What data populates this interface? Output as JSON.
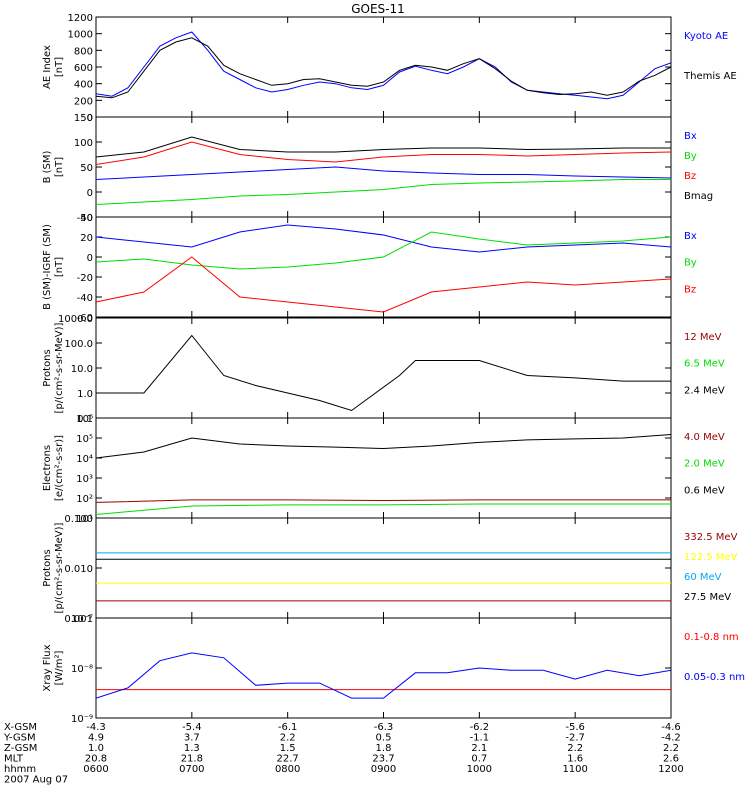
{
  "title": "GOES-11",
  "colors": {
    "black": "#000000",
    "blue": "#0000ff",
    "red": "#ff0000",
    "green": "#00dd00",
    "darkred": "#990000",
    "yellow": "#ffff00",
    "cyan": "#00aaee"
  },
  "chart_data": [
    {
      "id": "ae",
      "type": "line",
      "ylabel": [
        "AE Index",
        "[nT]"
      ],
      "ylim": [
        0,
        1200
      ],
      "yticks": [
        "0",
        "200",
        "400",
        "600",
        "800",
        "1000",
        "1200"
      ],
      "series": [
        {
          "name": "Kyoto AE",
          "color": "blue",
          "x": [
            0,
            10,
            20,
            30,
            40,
            50,
            60,
            70,
            80,
            90,
            100,
            110,
            120,
            130,
            140,
            150,
            160,
            170,
            180,
            190,
            200,
            210,
            220,
            230,
            240,
            250,
            260,
            270,
            280,
            290,
            300,
            310,
            320,
            330,
            340,
            350,
            360
          ],
          "values": [
            280,
            250,
            350,
            600,
            850,
            950,
            1020,
            800,
            550,
            450,
            350,
            300,
            330,
            380,
            420,
            400,
            350,
            330,
            380,
            540,
            610,
            560,
            520,
            600,
            700,
            600,
            420,
            320,
            300,
            280,
            260,
            240,
            220,
            260,
            420,
            580,
            650
          ]
        },
        {
          "name": "Themis AE",
          "color": "black",
          "x": [
            0,
            10,
            20,
            30,
            40,
            50,
            60,
            70,
            80,
            90,
            100,
            110,
            120,
            130,
            140,
            150,
            160,
            170,
            180,
            190,
            200,
            210,
            220,
            230,
            240,
            250,
            260,
            270,
            280,
            290,
            300,
            310,
            320,
            330,
            340,
            350,
            360
          ],
          "values": [
            250,
            230,
            300,
            550,
            800,
            900,
            950,
            850,
            620,
            520,
            450,
            380,
            400,
            450,
            460,
            420,
            380,
            370,
            420,
            560,
            620,
            600,
            560,
            640,
            700,
            580,
            430,
            320,
            290,
            270,
            280,
            300,
            260,
            300,
            430,
            500,
            600
          ]
        }
      ]
    },
    {
      "id": "bfield",
      "type": "line",
      "ylabel": [
        "B (SM)",
        "[nT]"
      ],
      "ylim": [
        -50,
        150
      ],
      "yticks": [
        "-50",
        "0",
        "50",
        "100",
        "150"
      ],
      "series": [
        {
          "name": "Bx",
          "color": "blue",
          "x": [
            0,
            30,
            60,
            90,
            120,
            150,
            180,
            210,
            240,
            270,
            300,
            330,
            360
          ],
          "values": [
            25,
            30,
            35,
            40,
            45,
            50,
            42,
            38,
            35,
            35,
            32,
            30,
            28
          ]
        },
        {
          "name": "By",
          "color": "green",
          "x": [
            0,
            30,
            60,
            90,
            120,
            150,
            180,
            210,
            240,
            270,
            300,
            330,
            360
          ],
          "values": [
            -25,
            -20,
            -15,
            -8,
            -5,
            0,
            5,
            15,
            18,
            20,
            22,
            25,
            25
          ]
        },
        {
          "name": "Bz",
          "color": "red",
          "x": [
            0,
            30,
            60,
            90,
            120,
            150,
            180,
            210,
            240,
            270,
            300,
            330,
            360
          ],
          "values": [
            55,
            70,
            100,
            75,
            65,
            60,
            70,
            75,
            75,
            72,
            75,
            78,
            80
          ]
        },
        {
          "name": "Bmag",
          "color": "black",
          "x": [
            0,
            30,
            60,
            90,
            120,
            150,
            180,
            210,
            240,
            270,
            300,
            330,
            360
          ],
          "values": [
            70,
            80,
            110,
            85,
            80,
            80,
            85,
            88,
            88,
            85,
            86,
            88,
            88
          ]
        }
      ]
    },
    {
      "id": "bdiff",
      "type": "line",
      "ylabel": [
        "B (SM)-IGRF (SM)",
        "[nT]"
      ],
      "ylim": [
        -60,
        40
      ],
      "yticks": [
        "-60",
        "-40",
        "-20",
        "0",
        "20",
        "40"
      ],
      "series": [
        {
          "name": "Bx",
          "color": "blue",
          "x": [
            0,
            30,
            60,
            90,
            120,
            150,
            180,
            210,
            240,
            270,
            300,
            330,
            360
          ],
          "values": [
            20,
            15,
            10,
            25,
            32,
            28,
            22,
            10,
            5,
            10,
            12,
            14,
            10
          ]
        },
        {
          "name": "By",
          "color": "green",
          "x": [
            0,
            30,
            60,
            90,
            120,
            150,
            180,
            210,
            240,
            270,
            300,
            330,
            360
          ],
          "values": [
            -5,
            -2,
            -8,
            -12,
            -10,
            -6,
            0,
            25,
            18,
            12,
            14,
            16,
            20
          ]
        },
        {
          "name": "Bz",
          "color": "red",
          "x": [
            0,
            30,
            60,
            90,
            120,
            150,
            180,
            210,
            240,
            270,
            300,
            330,
            360
          ],
          "values": [
            -45,
            -35,
            0,
            -40,
            -45,
            -50,
            -55,
            -35,
            -30,
            -25,
            -28,
            -25,
            -22
          ]
        }
      ]
    },
    {
      "id": "protons_low",
      "type": "line",
      "log": true,
      "ylabel": [
        "Protons",
        "[p/(cm²-s-sr-MeV)]"
      ],
      "ylim": [
        0.1,
        1000
      ],
      "yticks": [
        "0.1",
        "1.0",
        "10.0",
        "100.0",
        "1000.0"
      ],
      "series": [
        {
          "name": "12 MeV",
          "color": "darkred",
          "x": [
            0,
            60,
            120,
            180,
            240,
            300,
            360
          ],
          "values": [
            0.1,
            0.1,
            0.1,
            0.1,
            0.1,
            0.1,
            0.1
          ]
        },
        {
          "name": "6.5 MeV",
          "color": "green",
          "x": [
            0,
            60,
            120,
            180,
            240,
            300,
            360
          ],
          "values": [
            0.1,
            0.1,
            0.1,
            0.1,
            0.1,
            0.1,
            0.1
          ]
        },
        {
          "name": "2.4 MeV",
          "color": "black",
          "x": [
            0,
            30,
            60,
            80,
            100,
            140,
            160,
            190,
            200,
            240,
            270,
            300,
            330,
            360
          ],
          "values": [
            1,
            1,
            200,
            5,
            2,
            0.5,
            0.2,
            5,
            20,
            20,
            5,
            4,
            3,
            3
          ]
        }
      ]
    },
    {
      "id": "electrons",
      "type": "line",
      "log": true,
      "ylabel": [
        "Electrons",
        "[e/(cm²-s-sr)]"
      ],
      "ylim": [
        10,
        1000000
      ],
      "yticks": [
        "10¹",
        "10²",
        "10³",
        "10⁴",
        "10⁵",
        "10⁶"
      ],
      "series": [
        {
          "name": "4.0 MeV",
          "color": "darkred",
          "x": [
            0,
            60,
            120,
            180,
            240,
            300,
            360
          ],
          "values": [
            60,
            80,
            80,
            75,
            80,
            80,
            80
          ]
        },
        {
          "name": "2.0 MeV",
          "color": "green",
          "x": [
            0,
            60,
            120,
            180,
            240,
            300,
            360
          ],
          "values": [
            15,
            40,
            45,
            45,
            50,
            50,
            50
          ]
        },
        {
          "name": "0.6 MeV",
          "color": "black",
          "x": [
            0,
            30,
            60,
            90,
            120,
            150,
            180,
            210,
            240,
            270,
            300,
            330,
            360
          ],
          "values": [
            10000,
            20000,
            100000,
            50000,
            40000,
            35000,
            30000,
            40000,
            60000,
            80000,
            90000,
            100000,
            150000
          ]
        }
      ]
    },
    {
      "id": "protons_high",
      "type": "line",
      "log": true,
      "ylabel": [
        "Protons",
        "[p/(cm²-s-sr-MeV)]"
      ],
      "ylim": [
        0.001,
        0.1
      ],
      "yticks": [
        "0.001",
        "0.010",
        "0.100"
      ],
      "series": [
        {
          "name": "332.5 MeV",
          "color": "darkred",
          "x": [
            0,
            60,
            120,
            180,
            240,
            300,
            360
          ],
          "values": [
            0.0022,
            0.0022,
            0.0022,
            0.0022,
            0.0022,
            0.0022,
            0.0022
          ]
        },
        {
          "name": "122.5 MeV",
          "color": "yellow",
          "x": [
            0,
            60,
            120,
            180,
            240,
            300,
            360
          ],
          "values": [
            0.005,
            0.005,
            0.005,
            0.005,
            0.005,
            0.005,
            0.005
          ]
        },
        {
          "name": "60 MeV",
          "color": "cyan",
          "x": [
            0,
            60,
            120,
            180,
            240,
            300,
            360
          ],
          "values": [
            0.02,
            0.02,
            0.02,
            0.02,
            0.02,
            0.02,
            0.02
          ]
        },
        {
          "name": "27.5 MeV",
          "color": "black",
          "x": [
            0,
            60,
            120,
            180,
            240,
            300,
            360
          ],
          "values": [
            0.015,
            0.015,
            0.015,
            0.015,
            0.015,
            0.015,
            0.015
          ]
        }
      ]
    },
    {
      "id": "xray",
      "type": "line",
      "log": true,
      "ylabel": [
        "Xray Flux",
        "[W/m²]"
      ],
      "ylim": [
        1e-09,
        1e-07
      ],
      "yticks": [
        "10⁻⁹",
        "10⁻⁸",
        "10⁻⁷"
      ],
      "series": [
        {
          "name": "0.1-0.8 nm",
          "color": "red",
          "x": [
            0,
            360
          ],
          "values": [
            3.7e-09,
            3.7e-09
          ]
        },
        {
          "name": "0.05-0.3 nm",
          "color": "blue",
          "x": [
            0,
            20,
            40,
            60,
            80,
            100,
            120,
            140,
            160,
            180,
            200,
            220,
            240,
            260,
            280,
            300,
            320,
            340,
            360
          ],
          "values": [
            2.5e-09,
            4e-09,
            1.4e-08,
            2e-08,
            1.6e-08,
            4.5e-09,
            5e-09,
            5e-09,
            2.5e-09,
            2.5e-09,
            8e-09,
            8e-09,
            1e-08,
            9e-09,
            9e-09,
            6e-09,
            9e-09,
            7e-09,
            9e-09
          ]
        }
      ]
    }
  ],
  "x_axis": {
    "rows": [
      {
        "label": "X-GSM",
        "values": [
          "-4.3",
          "-5.4",
          "-6.1",
          "-6.3",
          "-6.2",
          "-5.6",
          "-4.6"
        ]
      },
      {
        "label": "Y-GSM",
        "values": [
          "4.9",
          "3.7",
          "2.2",
          "0.5",
          "-1.1",
          "-2.7",
          "-4.2"
        ]
      },
      {
        "label": "Z-GSM",
        "values": [
          "1.0",
          "1.3",
          "1.5",
          "1.8",
          "2.1",
          "2.2",
          "2.2"
        ]
      },
      {
        "label": "MLT",
        "values": [
          "20.8",
          "21.8",
          "22.7",
          "23.7",
          "0.7",
          "1.6",
          "2.6"
        ]
      },
      {
        "label": "hhmm",
        "values": [
          "0600",
          "0700",
          "0800",
          "0900",
          "1000",
          "1100",
          "1200"
        ]
      }
    ],
    "date": "2007 Aug 07"
  }
}
